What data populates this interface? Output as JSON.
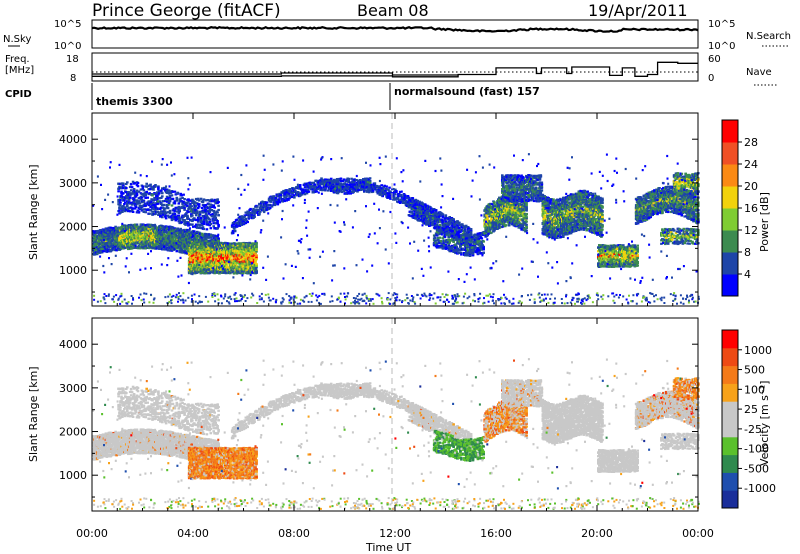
{
  "header": {
    "station": "Prince George (fitACF)",
    "beam": "Beam 08",
    "date": "19/Apr/2011"
  },
  "noise_panel": {
    "left_label": "N.Sky",
    "right_label": "N.Search",
    "left_ticks": [
      "10^5",
      "10^0"
    ],
    "right_ticks": [
      "10^5",
      "10^0"
    ]
  },
  "freq_panel": {
    "left_label_1": "Freq.",
    "left_label_2": "[MHz]",
    "right_label": "Nave",
    "left_ticks": [
      "18",
      "8"
    ],
    "right_ticks": [
      "60",
      "0"
    ],
    "nave_steps": [
      {
        "start_h": 0.0,
        "end_h": 7.5,
        "value": 10
      },
      {
        "start_h": 7.5,
        "end_h": 11.9,
        "value": 11
      },
      {
        "start_h": 11.9,
        "end_h": 14.5,
        "value": 9
      },
      {
        "start_h": 14.5,
        "end_h": 16.0,
        "value": 14
      },
      {
        "start_h": 16.0,
        "end_h": 17.6,
        "value": 28
      },
      {
        "start_h": 17.6,
        "end_h": 17.8,
        "value": 16
      },
      {
        "start_h": 17.8,
        "end_h": 18.8,
        "value": 28
      },
      {
        "start_h": 18.8,
        "end_h": 19.0,
        "value": 16
      },
      {
        "start_h": 19.0,
        "end_h": 20.5,
        "value": 30
      },
      {
        "start_h": 20.5,
        "end_h": 21.0,
        "value": 12
      },
      {
        "start_h": 21.0,
        "end_h": 21.5,
        "value": 28
      },
      {
        "start_h": 21.5,
        "end_h": 22.0,
        "value": 10
      },
      {
        "start_h": 22.0,
        "end_h": 22.4,
        "value": 14
      },
      {
        "start_h": 22.4,
        "end_h": 23.2,
        "value": 40
      },
      {
        "start_h": 23.2,
        "end_h": 24.0,
        "value": 38
      }
    ]
  },
  "cpid": {
    "label": "CPID",
    "program_1": "themis 3300",
    "program_2": "normalsound (fast) 157"
  },
  "power_panel": {
    "ylabel": "Slant Range [km]",
    "yticks": [
      "4000",
      "3000",
      "2000",
      "1000"
    ],
    "colorbar_label": "Power [dB]",
    "colorbar_ticks": [
      "28",
      "24",
      "20",
      "16",
      "12",
      "8",
      "4"
    ],
    "colors": [
      "#0000ff",
      "#1e45a8",
      "#3c8b50",
      "#7fcc33",
      "#f2d20c",
      "#fb8a14",
      "#f05025",
      "#ff0000"
    ]
  },
  "velocity_panel": {
    "ylabel": "Slant Range [km]",
    "yticks": [
      "4000",
      "3000",
      "2000",
      "1000"
    ],
    "colorbar_label": "Velocity [m s⁻¹]",
    "colorbar_ticks": [
      "1000",
      "500",
      "100",
      "25",
      "-25",
      "-100",
      "-500",
      "-1000"
    ],
    "colors": [
      "#1a2e9a",
      "#1f4fae",
      "#2f8a4e",
      "#5ac02c",
      "#c8c8c8",
      "#c8c8c8",
      "#f7a21a",
      "#f47a18",
      "#ee4a14",
      "#ff0000"
    ]
  },
  "x_axis": {
    "label": "Time UT",
    "ticks": [
      "00:00",
      "04:00",
      "08:00",
      "12:00",
      "16:00",
      "20:00",
      "00:00"
    ]
  }
}
